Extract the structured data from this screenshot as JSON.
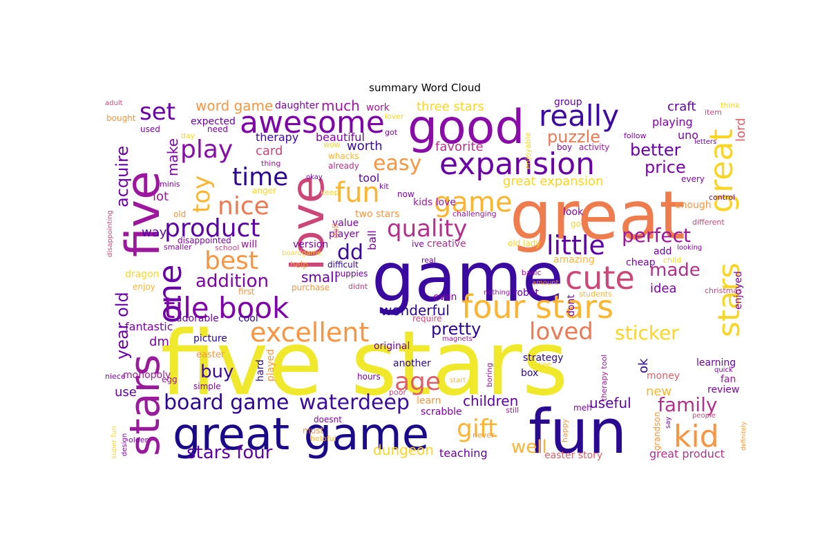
{
  "chart_data": {
    "type": "wordcloud",
    "title": "summary Word Cloud",
    "colormap": "plasma",
    "palette": [
      "#0d0887",
      "#2c0594",
      "#5c01a6",
      "#7e03a8",
      "#9c179e",
      "#b52f8c",
      "#cc4778",
      "#de5f65",
      "#ed7953",
      "#f89540",
      "#fdb42f",
      "#fbd524",
      "#f0f921"
    ],
    "words": [
      {
        "text": "five stars",
        "color": "#f0e82a"
      },
      {
        "text": "game",
        "color": "#3a0aa0"
      },
      {
        "text": "great",
        "color": "#ef7c4d"
      },
      {
        "text": "fun",
        "color": "#2a0a91"
      },
      {
        "text": "great game",
        "color": "#1a0a8a"
      },
      {
        "text": "good",
        "color": "#8a0ca8"
      },
      {
        "text": "love",
        "color": "#cc4778"
      },
      {
        "text": "stars",
        "color": "#9a1a9c"
      },
      {
        "text": "five",
        "color": "#9c179e"
      },
      {
        "text": "four stars",
        "color": "#fdb42f"
      },
      {
        "text": "awesome",
        "color": "#7e03a8"
      },
      {
        "text": "expansion",
        "color": "#6a00a8"
      },
      {
        "text": "stars",
        "color": "#fbd524"
      },
      {
        "text": "great",
        "color": "#fbd524"
      },
      {
        "text": "really",
        "color": "#3c0aa0"
      },
      {
        "text": "one",
        "color": "#6a00a8"
      },
      {
        "text": "tile book",
        "color": "#7e03a8"
      },
      {
        "text": "excellent",
        "color": "#f89540"
      },
      {
        "text": "cute",
        "color": "#cc4778"
      },
      {
        "text": "kid",
        "color": "#f89540"
      },
      {
        "text": "board game",
        "color": "#2c0594"
      },
      {
        "text": "waterdeep",
        "color": "#3a0aa0"
      },
      {
        "text": "quality",
        "color": "#b52f8c"
      },
      {
        "text": "fun",
        "color": "#fdb42f"
      },
      {
        "text": "game",
        "color": "#fdb42f"
      },
      {
        "text": "product",
        "color": "#5c01a6"
      },
      {
        "text": "nice",
        "color": "#ed7953"
      },
      {
        "text": "little",
        "color": "#5c01a6"
      },
      {
        "text": "best",
        "color": "#f89540"
      },
      {
        "text": "play",
        "color": "#8a0ca8"
      },
      {
        "text": "time",
        "color": "#2c0594"
      },
      {
        "text": "set",
        "color": "#6a00a8"
      },
      {
        "text": "toy",
        "color": "#fdb42f"
      },
      {
        "text": "age",
        "color": "#de5f65"
      },
      {
        "text": "gift",
        "color": "#fdb42f"
      },
      {
        "text": "family",
        "color": "#b52f8c"
      },
      {
        "text": "loved",
        "color": "#ed7953"
      },
      {
        "text": "sticker",
        "color": "#fbd524"
      },
      {
        "text": "easy",
        "color": "#f89540"
      },
      {
        "text": "perfect",
        "color": "#9c179e"
      },
      {
        "text": "made",
        "color": "#b52f8c"
      },
      {
        "text": "stars four",
        "color": "#5c01a6"
      },
      {
        "text": "addition",
        "color": "#7e03a8"
      },
      {
        "text": "dd",
        "color": "#3a0aa0"
      },
      {
        "text": "pretty",
        "color": "#2c0594"
      },
      {
        "text": "puzzle",
        "color": "#ed7953"
      },
      {
        "text": "better",
        "color": "#6a00a8"
      },
      {
        "text": "price",
        "color": "#7e03a8"
      },
      {
        "text": "well",
        "color": "#fdb42f"
      },
      {
        "text": "acquire",
        "color": "#6a00a8"
      },
      {
        "text": "year old",
        "color": "#6a00a8"
      },
      {
        "text": "buy",
        "color": "#3a0aa0"
      },
      {
        "text": "children",
        "color": "#5c01a6"
      },
      {
        "text": "dungeon",
        "color": "#fbd524"
      },
      {
        "text": "word game",
        "color": "#f89540"
      },
      {
        "text": "much",
        "color": "#9c179e"
      },
      {
        "text": "three stars",
        "color": "#fbd524"
      },
      {
        "text": "craft",
        "color": "#5c01a6"
      },
      {
        "text": "lord",
        "color": "#de5f65"
      },
      {
        "text": "make",
        "color": "#7e03a8"
      },
      {
        "text": "small",
        "color": "#6a00a8"
      },
      {
        "text": "wonderful",
        "color": "#2c0594"
      },
      {
        "text": "useful",
        "color": "#5c01a6"
      },
      {
        "text": "great expansion",
        "color": "#fbd524"
      },
      {
        "text": "new",
        "color": "#fdb42f"
      },
      {
        "text": "idea",
        "color": "#7e03a8"
      },
      {
        "text": "favorite",
        "color": "#b52f8c"
      },
      {
        "text": "worth",
        "color": "#3a0aa0"
      },
      {
        "text": "card",
        "color": "#cc4778"
      },
      {
        "text": "way",
        "color": "#5c01a6"
      },
      {
        "text": "lot",
        "color": "#9c179e"
      },
      {
        "text": "playing",
        "color": "#7e03a8"
      },
      {
        "text": "uno",
        "color": "#7e03a8"
      },
      {
        "text": "teaching",
        "color": "#6a00a8"
      },
      {
        "text": "easter story",
        "color": "#de5f65"
      },
      {
        "text": "great product",
        "color": "#b52f8c"
      },
      {
        "text": "use",
        "color": "#5c01a6"
      },
      {
        "text": "dm",
        "color": "#7e03a8"
      },
      {
        "text": "ok",
        "color": "#2c0594"
      },
      {
        "text": "fantastic",
        "color": "#7e03a8"
      },
      {
        "text": "therapy",
        "color": "#3a0aa0"
      },
      {
        "text": "beautiful",
        "color": "#7e03a8"
      },
      {
        "text": "work",
        "color": "#9c179e"
      },
      {
        "text": "daughter",
        "color": "#7e03a8"
      },
      {
        "text": "expected",
        "color": "#6a00a8"
      },
      {
        "text": "group",
        "color": "#6a00a8"
      },
      {
        "text": "tool",
        "color": "#5c01a6"
      },
      {
        "text": "kids love",
        "color": "#9c179e"
      },
      {
        "text": "two stars",
        "color": "#f89540"
      },
      {
        "text": "value",
        "color": "#7e03a8"
      },
      {
        "text": "player",
        "color": "#7e03a8"
      },
      {
        "text": "ball",
        "color": "#7e03a8"
      },
      {
        "text": "version",
        "color": "#7e03a8"
      },
      {
        "text": "will",
        "color": "#9c179e"
      },
      {
        "text": "creative",
        "color": "#b52f8c"
      },
      {
        "text": "look",
        "color": "#7e03a8"
      },
      {
        "text": "enough",
        "color": "#f89540"
      },
      {
        "text": "control",
        "color": "#6a00a8"
      },
      {
        "text": "different",
        "color": "#cc4778"
      },
      {
        "text": "add",
        "color": "#6a00a8"
      },
      {
        "text": "amazing",
        "color": "#fdb42f"
      },
      {
        "text": "cheap",
        "color": "#7e03a8"
      },
      {
        "text": "child",
        "color": "#fbd524"
      },
      {
        "text": "christmas",
        "color": "#cc4778"
      },
      {
        "text": "enjoyed",
        "color": "#7e03a8"
      },
      {
        "text": "even",
        "color": "#7e03a8"
      },
      {
        "text": "robot",
        "color": "#6a00a8"
      },
      {
        "text": "dont",
        "color": "#7e03a8"
      },
      {
        "text": "students",
        "color": "#fdb42f"
      },
      {
        "text": "strategy",
        "color": "#2c0594"
      },
      {
        "text": "box",
        "color": "#2c0594"
      },
      {
        "text": "money",
        "color": "#de5f65"
      },
      {
        "text": "learning",
        "color": "#6a00a8"
      },
      {
        "text": "fan",
        "color": "#9c179e"
      },
      {
        "text": "review",
        "color": "#7e03a8"
      },
      {
        "text": "original",
        "color": "#7e03a8"
      },
      {
        "text": "another",
        "color": "#2c0594"
      },
      {
        "text": "learn",
        "color": "#f89540"
      },
      {
        "text": "scrabble",
        "color": "#7e03a8"
      },
      {
        "text": "hard",
        "color": "#2c0594"
      },
      {
        "text": "played",
        "color": "#f89540"
      },
      {
        "text": "cool",
        "color": "#2c0594"
      },
      {
        "text": "adorable",
        "color": "#6a00a8"
      },
      {
        "text": "picture",
        "color": "#2c0594"
      },
      {
        "text": "easter",
        "color": "#f89540"
      },
      {
        "text": "monopoly",
        "color": "#9c179e"
      },
      {
        "text": "dragon",
        "color": "#fbd524"
      },
      {
        "text": "enjoy",
        "color": "#fdb42f"
      },
      {
        "text": "minis",
        "color": "#7e03a8"
      },
      {
        "text": "anger",
        "color": "#fbd524"
      },
      {
        "text": "old",
        "color": "#f89540"
      },
      {
        "text": "disappointed",
        "color": "#7e03a8"
      },
      {
        "text": "smaller",
        "color": "#7e03a8"
      },
      {
        "text": "school",
        "color": "#cc4778"
      },
      {
        "text": "help",
        "color": "#f89540"
      },
      {
        "text": "difficult",
        "color": "#2c0594"
      },
      {
        "text": "puppies",
        "color": "#6a00a8"
      },
      {
        "text": "purchase",
        "color": "#f89540"
      },
      {
        "text": "didnt",
        "color": "#cc4778"
      },
      {
        "text": "first",
        "color": "#f89540"
      },
      {
        "text": "doll",
        "color": "#f89540"
      },
      {
        "text": "already",
        "color": "#b52f8c"
      },
      {
        "text": "whacks",
        "color": "#fdb42f"
      },
      {
        "text": "okay",
        "color": "#6a00a8"
      },
      {
        "text": "keep",
        "color": "#fbd524"
      },
      {
        "text": "thing",
        "color": "#9c179e"
      },
      {
        "text": "wow",
        "color": "#fbd524"
      },
      {
        "text": "need",
        "color": "#7e03a8"
      },
      {
        "text": "used",
        "color": "#7e03a8"
      },
      {
        "text": "day",
        "color": "#fbd524"
      },
      {
        "text": "got",
        "color": "#7e03a8"
      },
      {
        "text": "lover",
        "color": "#fbd524"
      },
      {
        "text": "enjoyable",
        "color": "#fbd524"
      },
      {
        "text": "boy",
        "color": "#7e03a8"
      },
      {
        "text": "activity",
        "color": "#9c179e"
      },
      {
        "text": "follow",
        "color": "#7e03a8"
      },
      {
        "text": "letters",
        "color": "#6a00a8"
      },
      {
        "text": "item",
        "color": "#cc4778"
      },
      {
        "text": "think",
        "color": "#fbd524"
      },
      {
        "text": "kit",
        "color": "#7e03a8"
      },
      {
        "text": "now",
        "color": "#7e03a8"
      },
      {
        "text": "every",
        "color": "#7e03a8"
      },
      {
        "text": "challenging",
        "color": "#9c179e"
      },
      {
        "text": "go",
        "color": "#fbd524"
      },
      {
        "text": "old lady",
        "color": "#fbd524"
      },
      {
        "text": "ive",
        "color": "#7e03a8"
      },
      {
        "text": "looking",
        "color": "#7e03a8"
      },
      {
        "text": "real",
        "color": "#7e03a8"
      },
      {
        "text": "basic",
        "color": "#9c179e"
      },
      {
        "text": "amount",
        "color": "#f89540"
      },
      {
        "text": "nothing",
        "color": "#9c179e"
      },
      {
        "text": "require",
        "color": "#cc4778"
      },
      {
        "text": "magnets",
        "color": "#9c179e"
      },
      {
        "text": "boardgame",
        "color": "#fbd524"
      },
      {
        "text": "see",
        "color": "#fbd524"
      },
      {
        "text": "therapy tool",
        "color": "#9c179e"
      },
      {
        "text": "quick",
        "color": "#7e03a8"
      },
      {
        "text": "boring",
        "color": "#9c179e"
      },
      {
        "text": "hours",
        "color": "#7e03a8"
      },
      {
        "text": "poor",
        "color": "#cc4778"
      },
      {
        "text": "start",
        "color": "#fdb42f"
      },
      {
        "text": "still",
        "color": "#9c179e"
      },
      {
        "text": "meh",
        "color": "#7e03a8"
      },
      {
        "text": "happy",
        "color": "#f89540"
      },
      {
        "text": "grandson",
        "color": "#f89540"
      },
      {
        "text": "say",
        "color": "#7e03a8"
      },
      {
        "text": "people",
        "color": "#cc4778"
      },
      {
        "text": "definitely",
        "color": "#f89540"
      },
      {
        "text": "doesnt",
        "color": "#7e03a8"
      },
      {
        "text": "must",
        "color": "#f89540"
      },
      {
        "text": "helpful",
        "color": "#fdb42f"
      },
      {
        "text": "never",
        "color": "#f89540"
      },
      {
        "text": "older",
        "color": "#7e03a8"
      },
      {
        "text": "design",
        "color": "#7e03a8"
      },
      {
        "text": "super fun",
        "color": "#fbd524"
      },
      {
        "text": "niece",
        "color": "#7e03a8"
      },
      {
        "text": "egg",
        "color": "#9c179e"
      },
      {
        "text": "simple",
        "color": "#7e03a8"
      },
      {
        "text": "adult",
        "color": "#cc4778"
      },
      {
        "text": "bought",
        "color": "#f89540"
      },
      {
        "text": "disappointing",
        "color": "#cc4778"
      }
    ]
  }
}
